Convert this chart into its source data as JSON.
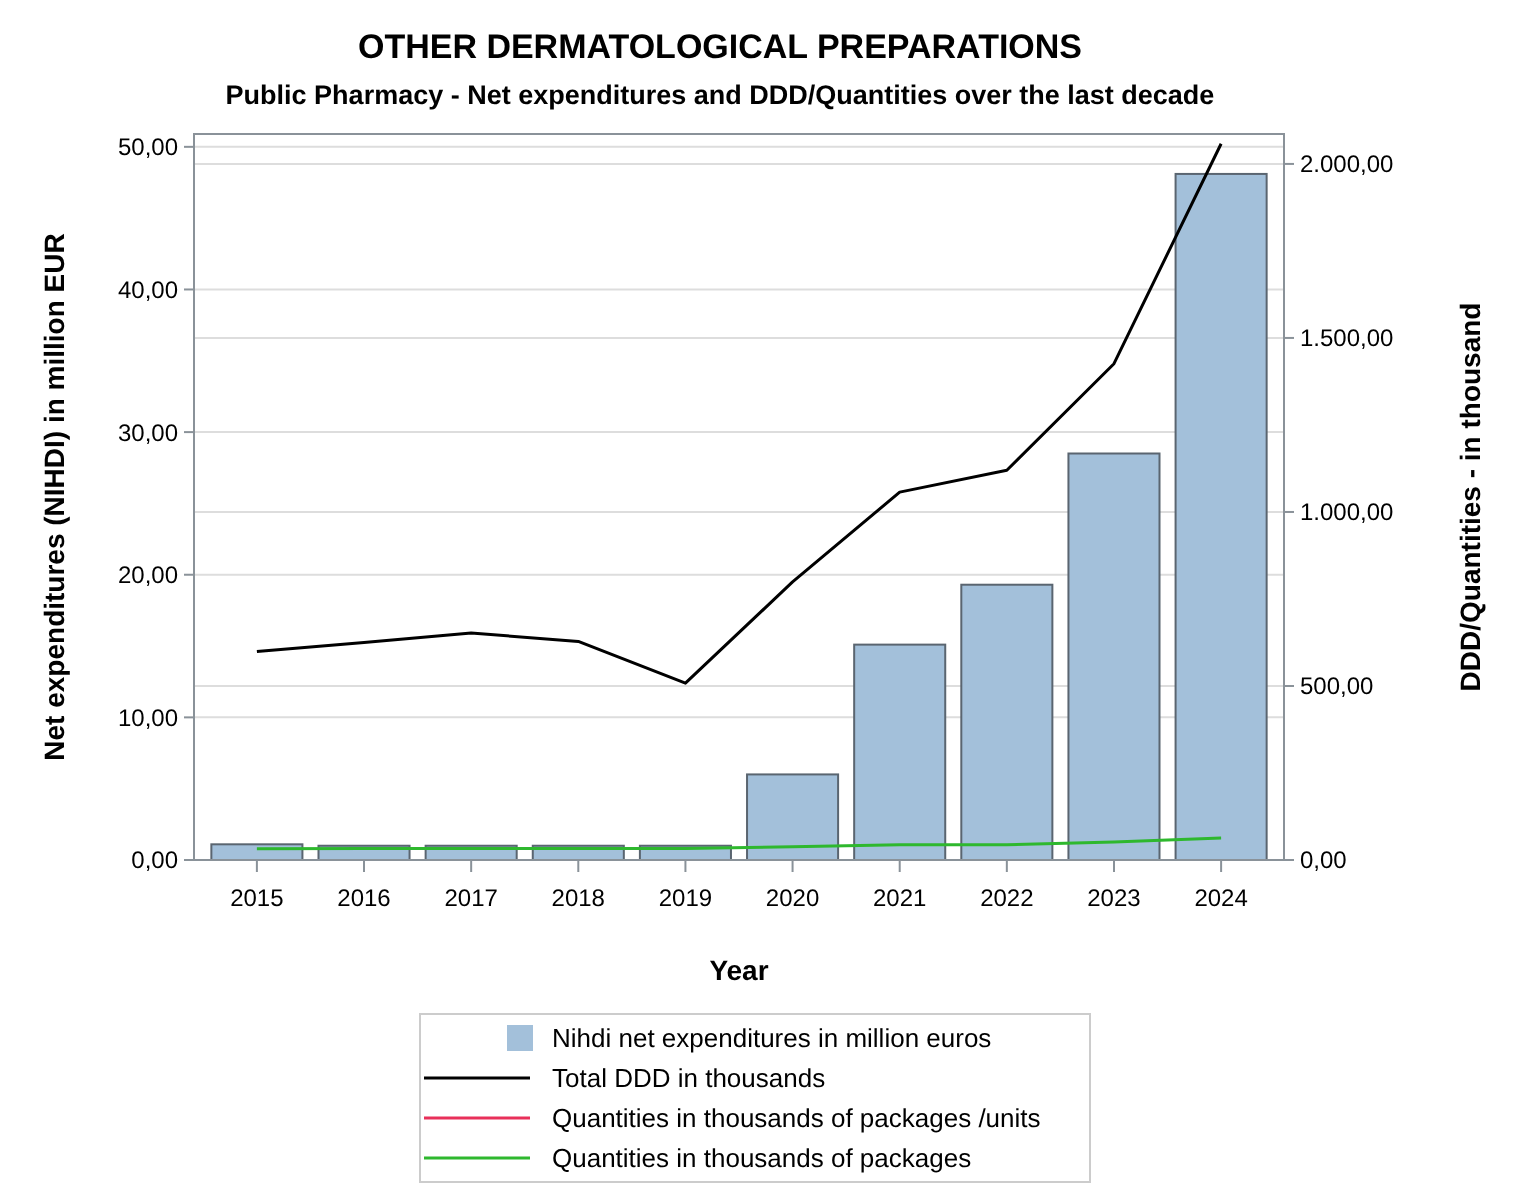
{
  "chart_data": {
    "type": "bar",
    "title": "OTHER DERMATOLOGICAL PREPARATIONS",
    "subtitle": "Public Pharmacy - Net expenditures and DDD/Quantities over the last decade",
    "xlabel": "Year",
    "ylabel": "Net expenditures (NIHDI) in million EUR",
    "y2label": "DDD/Quantities - in thousand",
    "categories": [
      "2015",
      "2016",
      "2017",
      "2018",
      "2019",
      "2020",
      "2021",
      "2022",
      "2023",
      "2024"
    ],
    "series": [
      {
        "name": "Nihdi net expenditures in million euros",
        "color": "#a3c0da",
        "values": [
          1.1,
          1.0,
          1.0,
          1.0,
          1.0,
          6.0,
          15.1,
          19.3,
          28.5,
          48.1
        ]
      },
      {
        "name": "Total DDD in thousands",
        "type": "line",
        "axis": "y2",
        "color": "#000000",
        "values": [
          599,
          625,
          652,
          628,
          508,
          799,
          1057,
          1120,
          1426,
          2058
        ]
      },
      {
        "name": "Quantities in thousands of packages /units",
        "type": "line",
        "axis": "y2",
        "color": "#e8305a",
        "values": [
          null,
          null,
          null,
          null,
          null,
          null,
          null,
          null,
          null,
          null
        ]
      },
      {
        "name": "Quantities in thousands of packages",
        "type": "line",
        "axis": "y2",
        "color": "#2eb82e",
        "values": [
          32,
          33,
          33,
          33,
          33,
          38,
          44,
          44,
          52,
          63
        ]
      }
    ],
    "ylim": [
      0,
      50.9
    ],
    "yticks": [
      {
        "value": 0,
        "label": "0,00"
      },
      {
        "value": 10,
        "label": "10,00"
      },
      {
        "value": 20,
        "label": "20,00"
      },
      {
        "value": 30,
        "label": "30,00"
      },
      {
        "value": 40,
        "label": "40,00"
      },
      {
        "value": 50,
        "label": "50,00"
      }
    ],
    "y2lim": [
      0,
      2086
    ],
    "y2ticks": [
      {
        "value": 0,
        "label": "0,00"
      },
      {
        "value": 500,
        "label": "500,00"
      },
      {
        "value": 1000,
        "label": "1.000,00"
      },
      {
        "value": 1500,
        "label": "1.500,00"
      },
      {
        "value": 2000,
        "label": "2.000,00"
      }
    ],
    "grid": true,
    "legend": "bottom",
    "line_style": "solid",
    "marker": "none"
  }
}
